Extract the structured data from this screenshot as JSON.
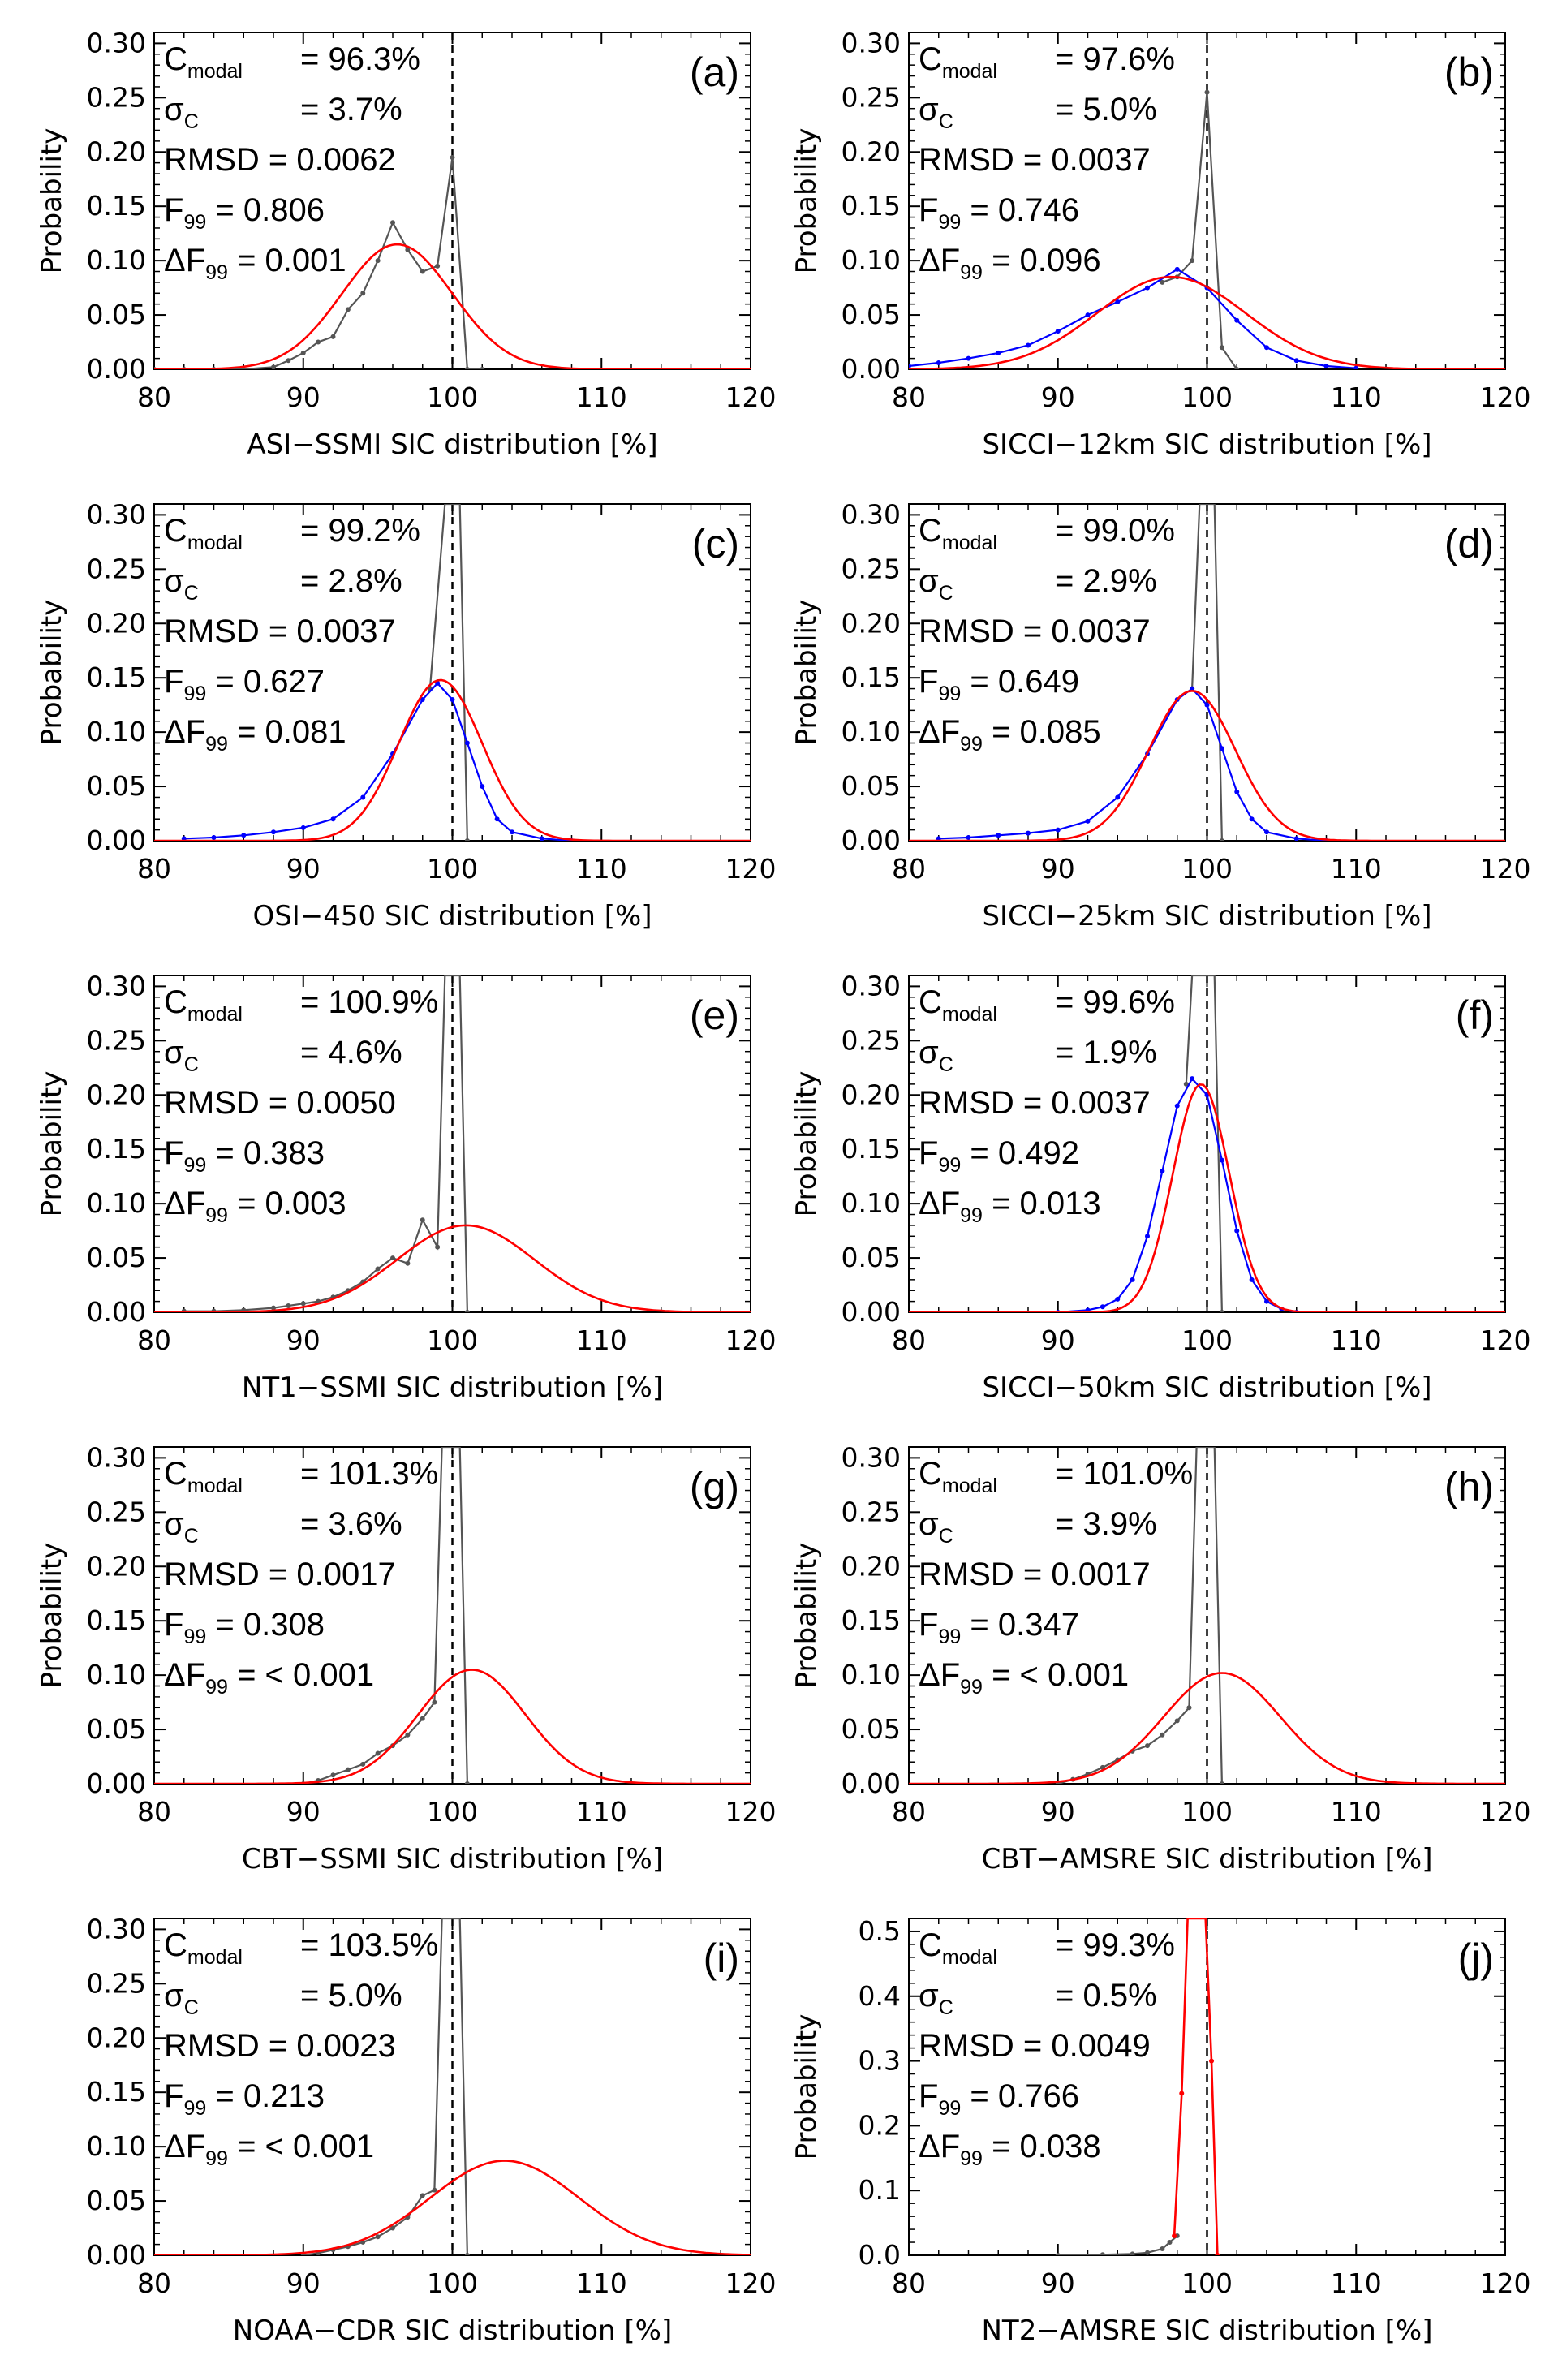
{
  "figure": {
    "ylabel": "Probability",
    "colors": {
      "axes": "#000000",
      "empirical": "#555555",
      "peak_line": "#555555",
      "fit": "#ff0000",
      "comparison": "#0000ff",
      "reference": "#000000"
    }
  },
  "chart_data": [
    {
      "type": "line",
      "panel": "(a)",
      "xlabel": "ASI−SSMI SIC distribution [%]",
      "ylabel": "Probability",
      "xlim": [
        80,
        120
      ],
      "ylim": [
        0,
        0.31
      ],
      "xticks": [
        80,
        90,
        100,
        110,
        120
      ],
      "yticks": [
        0,
        0.05,
        0.1,
        0.15,
        0.2,
        0.25,
        0.3
      ],
      "yticklabels": [
        "0.00",
        "0.05",
        "0.10",
        "0.15",
        "0.20",
        "0.25",
        "0.30"
      ],
      "reference_line_x": 100,
      "stats": {
        "cmodal": "96.3%",
        "sigma": "3.7%",
        "rmsd": "0.0062",
        "f99": "0.806",
        "df99": "0.001"
      },
      "series": [
        {
          "role": "empirical",
          "color": "#555555",
          "x": [
            80,
            82,
            84,
            86,
            88,
            89,
            90,
            91,
            92,
            93,
            94,
            95,
            96,
            97,
            98,
            99,
            100,
            101,
            102
          ],
          "y": [
            0,
            0,
            0,
            0,
            0.002,
            0.008,
            0.015,
            0.025,
            0.03,
            0.055,
            0.07,
            0.1,
            0.135,
            0.11,
            0.09,
            0.095,
            0.195,
            0.0,
            0.0
          ]
        },
        {
          "role": "fit",
          "color": "#ff0000",
          "gaussian": {
            "mu": 96.3,
            "sigma": 3.7,
            "peak": 0.115
          }
        }
      ]
    },
    {
      "type": "line",
      "panel": "(b)",
      "xlabel": "SICCI−12km SIC distribution [%]",
      "ylabel": "Probability",
      "xlim": [
        80,
        120
      ],
      "ylim": [
        0,
        0.31
      ],
      "xticks": [
        80,
        90,
        100,
        110,
        120
      ],
      "yticks": [
        0,
        0.05,
        0.1,
        0.15,
        0.2,
        0.25,
        0.3
      ],
      "yticklabels": [
        "0.00",
        "0.05",
        "0.10",
        "0.15",
        "0.20",
        "0.25",
        "0.30"
      ],
      "reference_line_x": 100,
      "stats": {
        "cmodal": "97.6%",
        "sigma": "5.0%",
        "rmsd": "0.0037",
        "f99": "0.746",
        "df99": "0.096"
      },
      "series": [
        {
          "role": "peak",
          "color": "#555555",
          "x": [
            97,
            98,
            99,
            100,
            101,
            102
          ],
          "y": [
            0.08,
            0.085,
            0.1,
            0.255,
            0.02,
            0.0
          ]
        },
        {
          "role": "comparison",
          "color": "#0000ff",
          "x": [
            80,
            82,
            84,
            86,
            88,
            90,
            92,
            94,
            96,
            98,
            100,
            102,
            104,
            106,
            108,
            110
          ],
          "y": [
            0.003,
            0.006,
            0.01,
            0.015,
            0.022,
            0.035,
            0.05,
            0.062,
            0.075,
            0.092,
            0.075,
            0.045,
            0.02,
            0.008,
            0.003,
            0.001
          ]
        },
        {
          "role": "fit",
          "color": "#ff0000",
          "gaussian": {
            "mu": 97.6,
            "sigma": 5.0,
            "peak": 0.085
          }
        }
      ]
    },
    {
      "type": "line",
      "panel": "(c)",
      "xlabel": "OSI−450 SIC distribution [%]",
      "ylabel": "Probability",
      "xlim": [
        80,
        120
      ],
      "ylim": [
        0,
        0.31
      ],
      "xticks": [
        80,
        90,
        100,
        110,
        120
      ],
      "yticks": [
        0,
        0.05,
        0.1,
        0.15,
        0.2,
        0.25,
        0.3
      ],
      "yticklabels": [
        "0.00",
        "0.05",
        "0.10",
        "0.15",
        "0.20",
        "0.25",
        "0.30"
      ],
      "reference_line_x": 100,
      "stats": {
        "cmodal": "99.2%",
        "sigma": "2.8%",
        "rmsd": "0.0037",
        "f99": "0.627",
        "df99": "0.081"
      },
      "series": [
        {
          "role": "peak",
          "color": "#555555",
          "x": [
            98.5,
            99.5,
            100,
            100.5,
            101
          ],
          "y": [
            0.14,
            0.31,
            0.31,
            0.31,
            0.0
          ]
        },
        {
          "role": "comparison",
          "color": "#0000ff",
          "x": [
            82,
            84,
            86,
            88,
            90,
            92,
            94,
            96,
            98,
            99,
            100,
            101,
            102,
            103,
            104,
            106,
            108
          ],
          "y": [
            0.002,
            0.003,
            0.005,
            0.008,
            0.012,
            0.02,
            0.04,
            0.08,
            0.13,
            0.145,
            0.13,
            0.09,
            0.05,
            0.02,
            0.008,
            0.002,
            0.0
          ]
        },
        {
          "role": "fit",
          "color": "#ff0000",
          "gaussian": {
            "mu": 99.2,
            "sigma": 2.8,
            "peak": 0.148
          }
        }
      ]
    },
    {
      "type": "line",
      "panel": "(d)",
      "xlabel": "SICCI−25km SIC distribution [%]",
      "ylabel": "Probability",
      "xlim": [
        80,
        120
      ],
      "ylim": [
        0,
        0.31
      ],
      "xticks": [
        80,
        90,
        100,
        110,
        120
      ],
      "yticks": [
        0,
        0.05,
        0.1,
        0.15,
        0.2,
        0.25,
        0.3
      ],
      "yticklabels": [
        "0.00",
        "0.05",
        "0.10",
        "0.15",
        "0.20",
        "0.25",
        "0.30"
      ],
      "reference_line_x": 100,
      "stats": {
        "cmodal": "99.0%",
        "sigma": "2.9%",
        "rmsd": "0.0037",
        "f99": "0.649",
        "df99": "0.085"
      },
      "series": [
        {
          "role": "peak",
          "color": "#555555",
          "x": [
            99,
            99.5,
            100,
            100.5,
            101
          ],
          "y": [
            0.14,
            0.31,
            0.31,
            0.31,
            0.0
          ]
        },
        {
          "role": "comparison",
          "color": "#0000ff",
          "x": [
            82,
            84,
            86,
            88,
            90,
            92,
            94,
            96,
            98,
            99,
            100,
            101,
            102,
            103,
            104,
            106,
            108
          ],
          "y": [
            0.002,
            0.003,
            0.005,
            0.007,
            0.01,
            0.018,
            0.04,
            0.08,
            0.13,
            0.14,
            0.125,
            0.085,
            0.045,
            0.02,
            0.008,
            0.002,
            0.0
          ]
        },
        {
          "role": "fit",
          "color": "#ff0000",
          "gaussian": {
            "mu": 99.0,
            "sigma": 2.9,
            "peak": 0.138
          }
        }
      ]
    },
    {
      "type": "line",
      "panel": "(e)",
      "xlabel": "NT1−SSMI SIC distribution [%]",
      "ylabel": "Probability",
      "xlim": [
        80,
        120
      ],
      "ylim": [
        0,
        0.31
      ],
      "xticks": [
        80,
        90,
        100,
        110,
        120
      ],
      "yticks": [
        0,
        0.05,
        0.1,
        0.15,
        0.2,
        0.25,
        0.3
      ],
      "yticklabels": [
        "0.00",
        "0.05",
        "0.10",
        "0.15",
        "0.20",
        "0.25",
        "0.30"
      ],
      "reference_line_x": 100,
      "stats": {
        "cmodal": "100.9%",
        "sigma": "4.6%",
        "rmsd": "0.0050",
        "f99": "0.383",
        "df99": "0.003"
      },
      "series": [
        {
          "role": "empirical",
          "color": "#555555",
          "x": [
            82,
            84,
            86,
            88,
            89,
            90,
            91,
            92,
            93,
            94,
            95,
            96,
            97,
            98,
            99,
            99.5,
            100.5,
            101
          ],
          "y": [
            0.001,
            0.001,
            0.002,
            0.004,
            0.006,
            0.008,
            0.01,
            0.014,
            0.02,
            0.028,
            0.04,
            0.05,
            0.045,
            0.085,
            0.06,
            0.31,
            0.31,
            0.0
          ]
        },
        {
          "role": "fit",
          "color": "#ff0000",
          "gaussian": {
            "mu": 100.9,
            "sigma": 4.6,
            "peak": 0.08
          }
        }
      ]
    },
    {
      "type": "line",
      "panel": "(f)",
      "xlabel": "SICCI−50km SIC distribution [%]",
      "ylabel": "Probability",
      "xlim": [
        80,
        120
      ],
      "ylim": [
        0,
        0.31
      ],
      "xticks": [
        80,
        90,
        100,
        110,
        120
      ],
      "yticks": [
        0,
        0.05,
        0.1,
        0.15,
        0.2,
        0.25,
        0.3
      ],
      "yticklabels": [
        "0.00",
        "0.05",
        "0.10",
        "0.15",
        "0.20",
        "0.25",
        "0.30"
      ],
      "reference_line_x": 100,
      "stats": {
        "cmodal": "99.6%",
        "sigma": "1.9%",
        "rmsd": "0.0037",
        "f99": "0.492",
        "df99": "0.013"
      },
      "series": [
        {
          "role": "peak",
          "color": "#555555",
          "x": [
            98.6,
            99,
            99.5,
            100.5,
            101
          ],
          "y": [
            0.21,
            0.31,
            0.31,
            0.31,
            0.0
          ]
        },
        {
          "role": "comparison",
          "color": "#0000ff",
          "x": [
            90,
            92,
            93,
            94,
            95,
            96,
            97,
            98,
            99,
            100,
            101,
            102,
            103,
            104,
            105,
            106
          ],
          "y": [
            0.0,
            0.002,
            0.005,
            0.012,
            0.03,
            0.07,
            0.13,
            0.19,
            0.215,
            0.2,
            0.14,
            0.075,
            0.03,
            0.01,
            0.003,
            0.0
          ]
        },
        {
          "role": "fit",
          "color": "#ff0000",
          "gaussian": {
            "mu": 99.6,
            "sigma": 1.9,
            "peak": 0.21
          }
        }
      ]
    },
    {
      "type": "line",
      "panel": "(g)",
      "xlabel": "CBT−SSMI SIC distribution [%]",
      "ylabel": "Probability",
      "xlim": [
        80,
        120
      ],
      "ylim": [
        0,
        0.31
      ],
      "xticks": [
        80,
        90,
        100,
        110,
        120
      ],
      "yticks": [
        0,
        0.05,
        0.1,
        0.15,
        0.2,
        0.25,
        0.3
      ],
      "yticklabels": [
        "0.00",
        "0.05",
        "0.10",
        "0.15",
        "0.20",
        "0.25",
        "0.30"
      ],
      "reference_line_x": 100,
      "stats": {
        "cmodal": "101.3%",
        "sigma": "3.6%",
        "rmsd": "0.0017",
        "f99": "0.308",
        "df99": "< 0.001"
      },
      "series": [
        {
          "role": "empirical",
          "color": "#555555",
          "x": [
            90,
            91,
            92,
            93,
            94,
            95,
            96,
            97,
            98,
            98.8,
            99.3,
            100.5,
            101
          ],
          "y": [
            0.0,
            0.003,
            0.008,
            0.013,
            0.018,
            0.028,
            0.035,
            0.045,
            0.06,
            0.075,
            0.31,
            0.31,
            0.0
          ]
        },
        {
          "role": "fit",
          "color": "#ff0000",
          "gaussian": {
            "mu": 101.3,
            "sigma": 3.6,
            "peak": 0.105
          }
        }
      ]
    },
    {
      "type": "line",
      "panel": "(h)",
      "xlabel": "CBT−AMSRE SIC distribution [%]",
      "ylabel": "Probability",
      "xlim": [
        80,
        120
      ],
      "ylim": [
        0,
        0.31
      ],
      "xticks": [
        80,
        90,
        100,
        110,
        120
      ],
      "yticks": [
        0,
        0.05,
        0.1,
        0.15,
        0.2,
        0.25,
        0.3
      ],
      "yticklabels": [
        "0.00",
        "0.05",
        "0.10",
        "0.15",
        "0.20",
        "0.25",
        "0.30"
      ],
      "reference_line_x": 100,
      "stats": {
        "cmodal": "101.0%",
        "sigma": "3.9%",
        "rmsd": "0.0017",
        "f99": "0.347",
        "df99": "< 0.001"
      },
      "series": [
        {
          "role": "empirical",
          "color": "#555555",
          "x": [
            90,
            91,
            92,
            93,
            94,
            95,
            96,
            97,
            98,
            98.8,
            99.3,
            100.5,
            101
          ],
          "y": [
            0.0,
            0.004,
            0.009,
            0.015,
            0.022,
            0.03,
            0.035,
            0.045,
            0.058,
            0.07,
            0.31,
            0.31,
            0.0
          ]
        },
        {
          "role": "fit",
          "color": "#ff0000",
          "gaussian": {
            "mu": 101.0,
            "sigma": 3.9,
            "peak": 0.102
          }
        }
      ]
    },
    {
      "type": "line",
      "panel": "(i)",
      "xlabel": "NOAA−CDR SIC distribution [%]",
      "ylabel": "",
      "xlim": [
        80,
        120
      ],
      "ylim": [
        0,
        0.31
      ],
      "xticks": [
        80,
        90,
        100,
        110,
        120
      ],
      "yticks": [
        0,
        0.05,
        0.1,
        0.15,
        0.2,
        0.25,
        0.3
      ],
      "yticklabels": [
        "0.00",
        "0.05",
        "0.10",
        "0.15",
        "0.20",
        "0.25",
        "0.30"
      ],
      "reference_line_x": 100,
      "stats": {
        "cmodal": "103.5%",
        "sigma": "5.0%",
        "rmsd": "0.0023",
        "f99": "0.213",
        "df99": "< 0.001"
      },
      "series": [
        {
          "role": "empirical",
          "color": "#555555",
          "x": [
            90,
            91,
            92,
            93,
            94,
            95,
            96,
            97,
            98,
            98.8,
            99.3,
            100.5,
            101
          ],
          "y": [
            0.0,
            0.002,
            0.005,
            0.008,
            0.012,
            0.017,
            0.025,
            0.035,
            0.055,
            0.06,
            0.31,
            0.31,
            0.0
          ]
        },
        {
          "role": "fit",
          "color": "#ff0000",
          "gaussian": {
            "mu": 103.5,
            "sigma": 5.0,
            "peak": 0.087
          }
        }
      ]
    },
    {
      "type": "line",
      "panel": "(j)",
      "xlabel": "NT2−AMSRE SIC distribution [%]",
      "ylabel": "Probability",
      "xlim": [
        80,
        120
      ],
      "ylim": [
        0,
        0.52
      ],
      "xticks": [
        80,
        90,
        100,
        110,
        120
      ],
      "yticks": [
        0,
        0.1,
        0.2,
        0.3,
        0.4,
        0.5
      ],
      "yticklabels": [
        "0.0",
        "0.1",
        "0.2",
        "0.3",
        "0.4",
        "0.5"
      ],
      "reference_line_x": 100,
      "stats": {
        "cmodal": "99.3%",
        "sigma": "0.5%",
        "rmsd": "0.0049",
        "f99": "0.766",
        "df99": "0.038"
      },
      "series": [
        {
          "role": "empirical",
          "color": "#555555",
          "x": [
            90,
            93,
            95,
            96,
            97,
            97.5,
            98
          ],
          "y": [
            0.0,
            0.001,
            0.002,
            0.004,
            0.01,
            0.02,
            0.03
          ]
        },
        {
          "role": "fit",
          "color": "#ff0000",
          "x": [
            97.8,
            98.3,
            98.7,
            99.0,
            99.3,
            99.6,
            99.9,
            100.3,
            100.7
          ],
          "y": [
            0.03,
            0.25,
            0.52,
            0.52,
            0.52,
            0.52,
            0.52,
            0.3,
            0.0
          ]
        }
      ]
    }
  ]
}
